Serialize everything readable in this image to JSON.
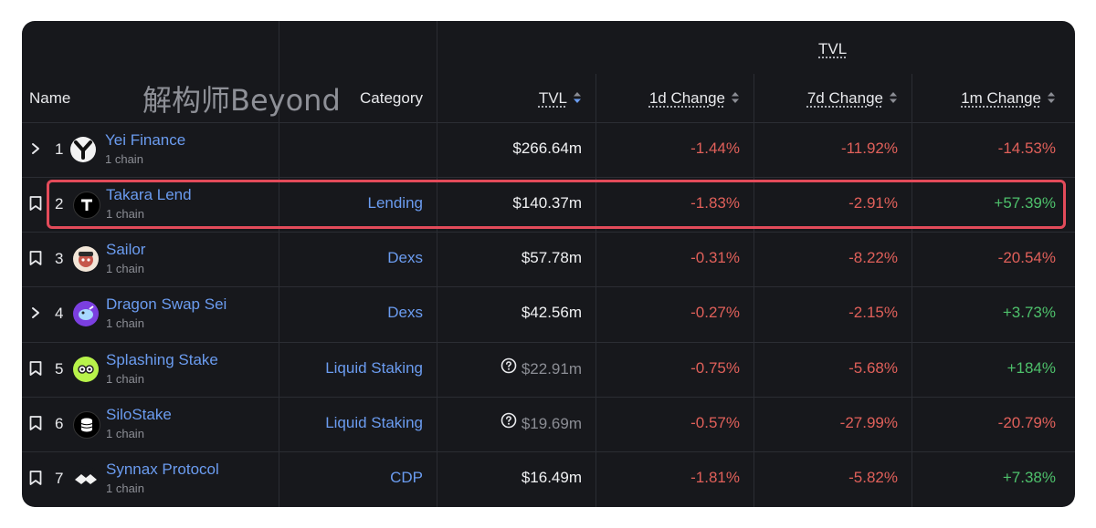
{
  "header": {
    "group_label": "TVL",
    "watermark": "解构师Beyond",
    "columns": {
      "name": "Name",
      "category": "Category",
      "tvl": "TVL",
      "change_1d": "1d Change",
      "change_7d": "7d Change",
      "change_1m": "1m Change"
    }
  },
  "rows": [
    {
      "rank": "1",
      "name": "Yei Finance",
      "chains": "1 chain",
      "category": "",
      "tvl": "$266.64m",
      "c1": "-1.44%",
      "c7": "-11.92%",
      "cm": "-14.53%",
      "control": "chevron-right-icon",
      "logo": "yei-finance-logo"
    },
    {
      "rank": "2",
      "name": "Takara Lend",
      "chains": "1 chain",
      "category": "Lending",
      "tvl": "$140.37m",
      "c1": "-1.83%",
      "c7": "-2.91%",
      "cm": "+57.39%",
      "control": "bookmark-icon",
      "logo": "takara-lend-logo"
    },
    {
      "rank": "3",
      "name": "Sailor",
      "chains": "1 chain",
      "category": "Dexs",
      "tvl": "$57.78m",
      "c1": "-0.31%",
      "c7": "-8.22%",
      "cm": "-20.54%",
      "control": "bookmark-icon",
      "logo": "sailor-logo"
    },
    {
      "rank": "4",
      "name": "Dragon Swap Sei",
      "chains": "1 chain",
      "category": "Dexs",
      "tvl": "$42.56m",
      "c1": "-0.27%",
      "c7": "-2.15%",
      "cm": "+3.73%",
      "control": "chevron-right-icon",
      "logo": "dragon-swap-logo"
    },
    {
      "rank": "5",
      "name": "Splashing Stake",
      "chains": "1 chain",
      "category": "Liquid Staking",
      "tvl": "$22.91m",
      "c1": "-0.75%",
      "c7": "-5.68%",
      "cm": "+184%",
      "control": "bookmark-icon",
      "logo": "splashing-stake-logo"
    },
    {
      "rank": "6",
      "name": "SiloStake",
      "chains": "1 chain",
      "category": "Liquid Staking",
      "tvl": "$19.69m",
      "c1": "-0.57%",
      "c7": "-27.99%",
      "cm": "-20.79%",
      "control": "bookmark-icon",
      "logo": "silostake-logo"
    },
    {
      "rank": "7",
      "name": "Synnax Protocol",
      "chains": "1 chain",
      "category": "CDP",
      "tvl": "$16.49m",
      "c1": "-1.81%",
      "c7": "-5.82%",
      "cm": "+7.38%",
      "control": "bookmark-icon",
      "logo": "synnax-protocol-logo"
    }
  ],
  "colors": {
    "background": "#17181c",
    "link": "#6b9cf0",
    "negative": "#e0605a",
    "positive": "#4ec06b",
    "highlight": "#e34b5a"
  }
}
